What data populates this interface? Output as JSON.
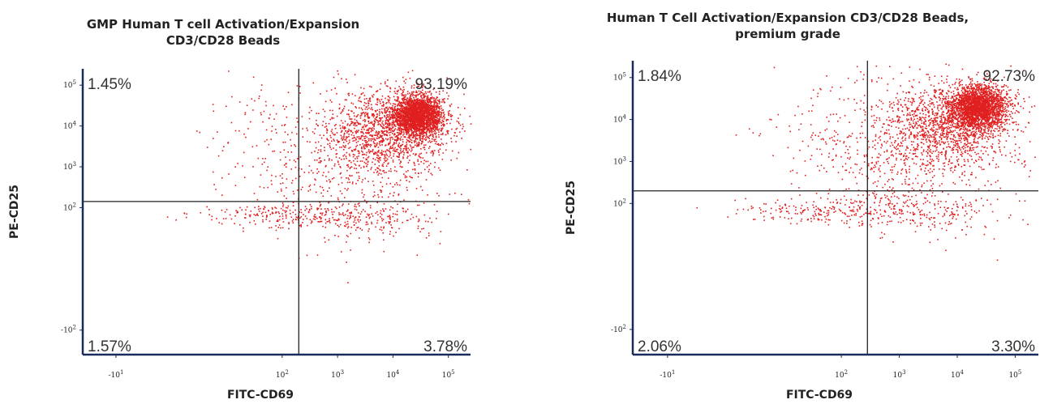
{
  "chart_data": [
    {
      "type": "scatter",
      "title_lines": [
        "GMP Human T cell Activation/Expansion",
        "CD3/CD28 Beads"
      ],
      "xlabel": "FITC-CD69",
      "ylabel": "PE-CD25",
      "x_ticks": [
        {
          "base": "-10",
          "exp": "1",
          "value": -1
        },
        {
          "base": "10",
          "exp": "2",
          "value": 2
        },
        {
          "base": "10",
          "exp": "3",
          "value": 3
        },
        {
          "base": "10",
          "exp": "4",
          "value": 4
        },
        {
          "base": "10",
          "exp": "5",
          "value": 5
        }
      ],
      "y_ticks": [
        {
          "base": "-10",
          "exp": "2",
          "value": -1
        },
        {
          "base": "10",
          "exp": "2",
          "value": 2
        },
        {
          "base": "10",
          "exp": "3",
          "value": 3
        },
        {
          "base": "10",
          "exp": "4",
          "value": 4
        },
        {
          "base": "10",
          "exp": "5",
          "value": 5
        }
      ],
      "xlim": [
        -1.6,
        5.4
      ],
      "ylim": [
        -1.6,
        5.4
      ],
      "gate": {
        "x": 2.3,
        "y": 2.15
      },
      "quadrants": {
        "upper_left": "1.45%",
        "upper_right": "93.19%",
        "lower_left": "1.57%",
        "lower_right": "3.78%"
      },
      "point_color": "#e02020",
      "populations": [
        {
          "cx": 4.45,
          "cy": 4.28,
          "sx": 0.22,
          "sy": 0.24,
          "n": 2300
        },
        {
          "cx": 3.9,
          "cy": 3.9,
          "sx": 0.55,
          "sy": 0.5,
          "n": 1300
        },
        {
          "cx": 3.2,
          "cy": 3.1,
          "sx": 0.85,
          "sy": 0.9,
          "n": 450
        },
        {
          "cx": 1.9,
          "cy": 1.85,
          "sx": 0.75,
          "sy": 0.14,
          "n": 160
        },
        {
          "cx": 3.4,
          "cy": 1.75,
          "sx": 0.8,
          "sy": 0.22,
          "n": 220
        },
        {
          "cx": 1.6,
          "cy": 3.6,
          "sx": 0.55,
          "sy": 0.8,
          "n": 110
        }
      ]
    },
    {
      "type": "scatter",
      "title_lines": [
        "Human T Cell Activation/Expansion CD3/CD28 Beads,",
        "premium grade"
      ],
      "xlabel": "FITC-CD69",
      "ylabel": "PE-CD25",
      "x_ticks": [
        {
          "base": "-10",
          "exp": "1",
          "value": -1
        },
        {
          "base": "10",
          "exp": "2",
          "value": 2
        },
        {
          "base": "10",
          "exp": "3",
          "value": 3
        },
        {
          "base": "10",
          "exp": "4",
          "value": 4
        },
        {
          "base": "10",
          "exp": "5",
          "value": 5
        }
      ],
      "y_ticks": [
        {
          "base": "-10",
          "exp": "2",
          "value": -1
        },
        {
          "base": "10",
          "exp": "2",
          "value": 2
        },
        {
          "base": "10",
          "exp": "3",
          "value": 3
        },
        {
          "base": "10",
          "exp": "4",
          "value": 4
        },
        {
          "base": "10",
          "exp": "5",
          "value": 5
        }
      ],
      "xlim": [
        -1.6,
        5.4
      ],
      "ylim": [
        -1.6,
        5.4
      ],
      "gate": {
        "x": 2.45,
        "y": 2.3
      },
      "quadrants": {
        "upper_left": "1.84%",
        "upper_right": "92.73%",
        "lower_left": "2.06%",
        "lower_right": "3.30%"
      },
      "point_color": "#e02020",
      "populations": [
        {
          "cx": 4.35,
          "cy": 4.3,
          "sx": 0.24,
          "sy": 0.26,
          "n": 2300
        },
        {
          "cx": 3.8,
          "cy": 3.9,
          "sx": 0.55,
          "sy": 0.5,
          "n": 1300
        },
        {
          "cx": 3.2,
          "cy": 3.1,
          "sx": 0.85,
          "sy": 0.9,
          "n": 480
        },
        {
          "cx": 1.7,
          "cy": 1.85,
          "sx": 0.7,
          "sy": 0.15,
          "n": 180
        },
        {
          "cx": 3.3,
          "cy": 1.8,
          "sx": 0.8,
          "sy": 0.22,
          "n": 200
        },
        {
          "cx": 1.8,
          "cy": 3.7,
          "sx": 0.55,
          "sy": 0.8,
          "n": 110
        }
      ]
    }
  ]
}
